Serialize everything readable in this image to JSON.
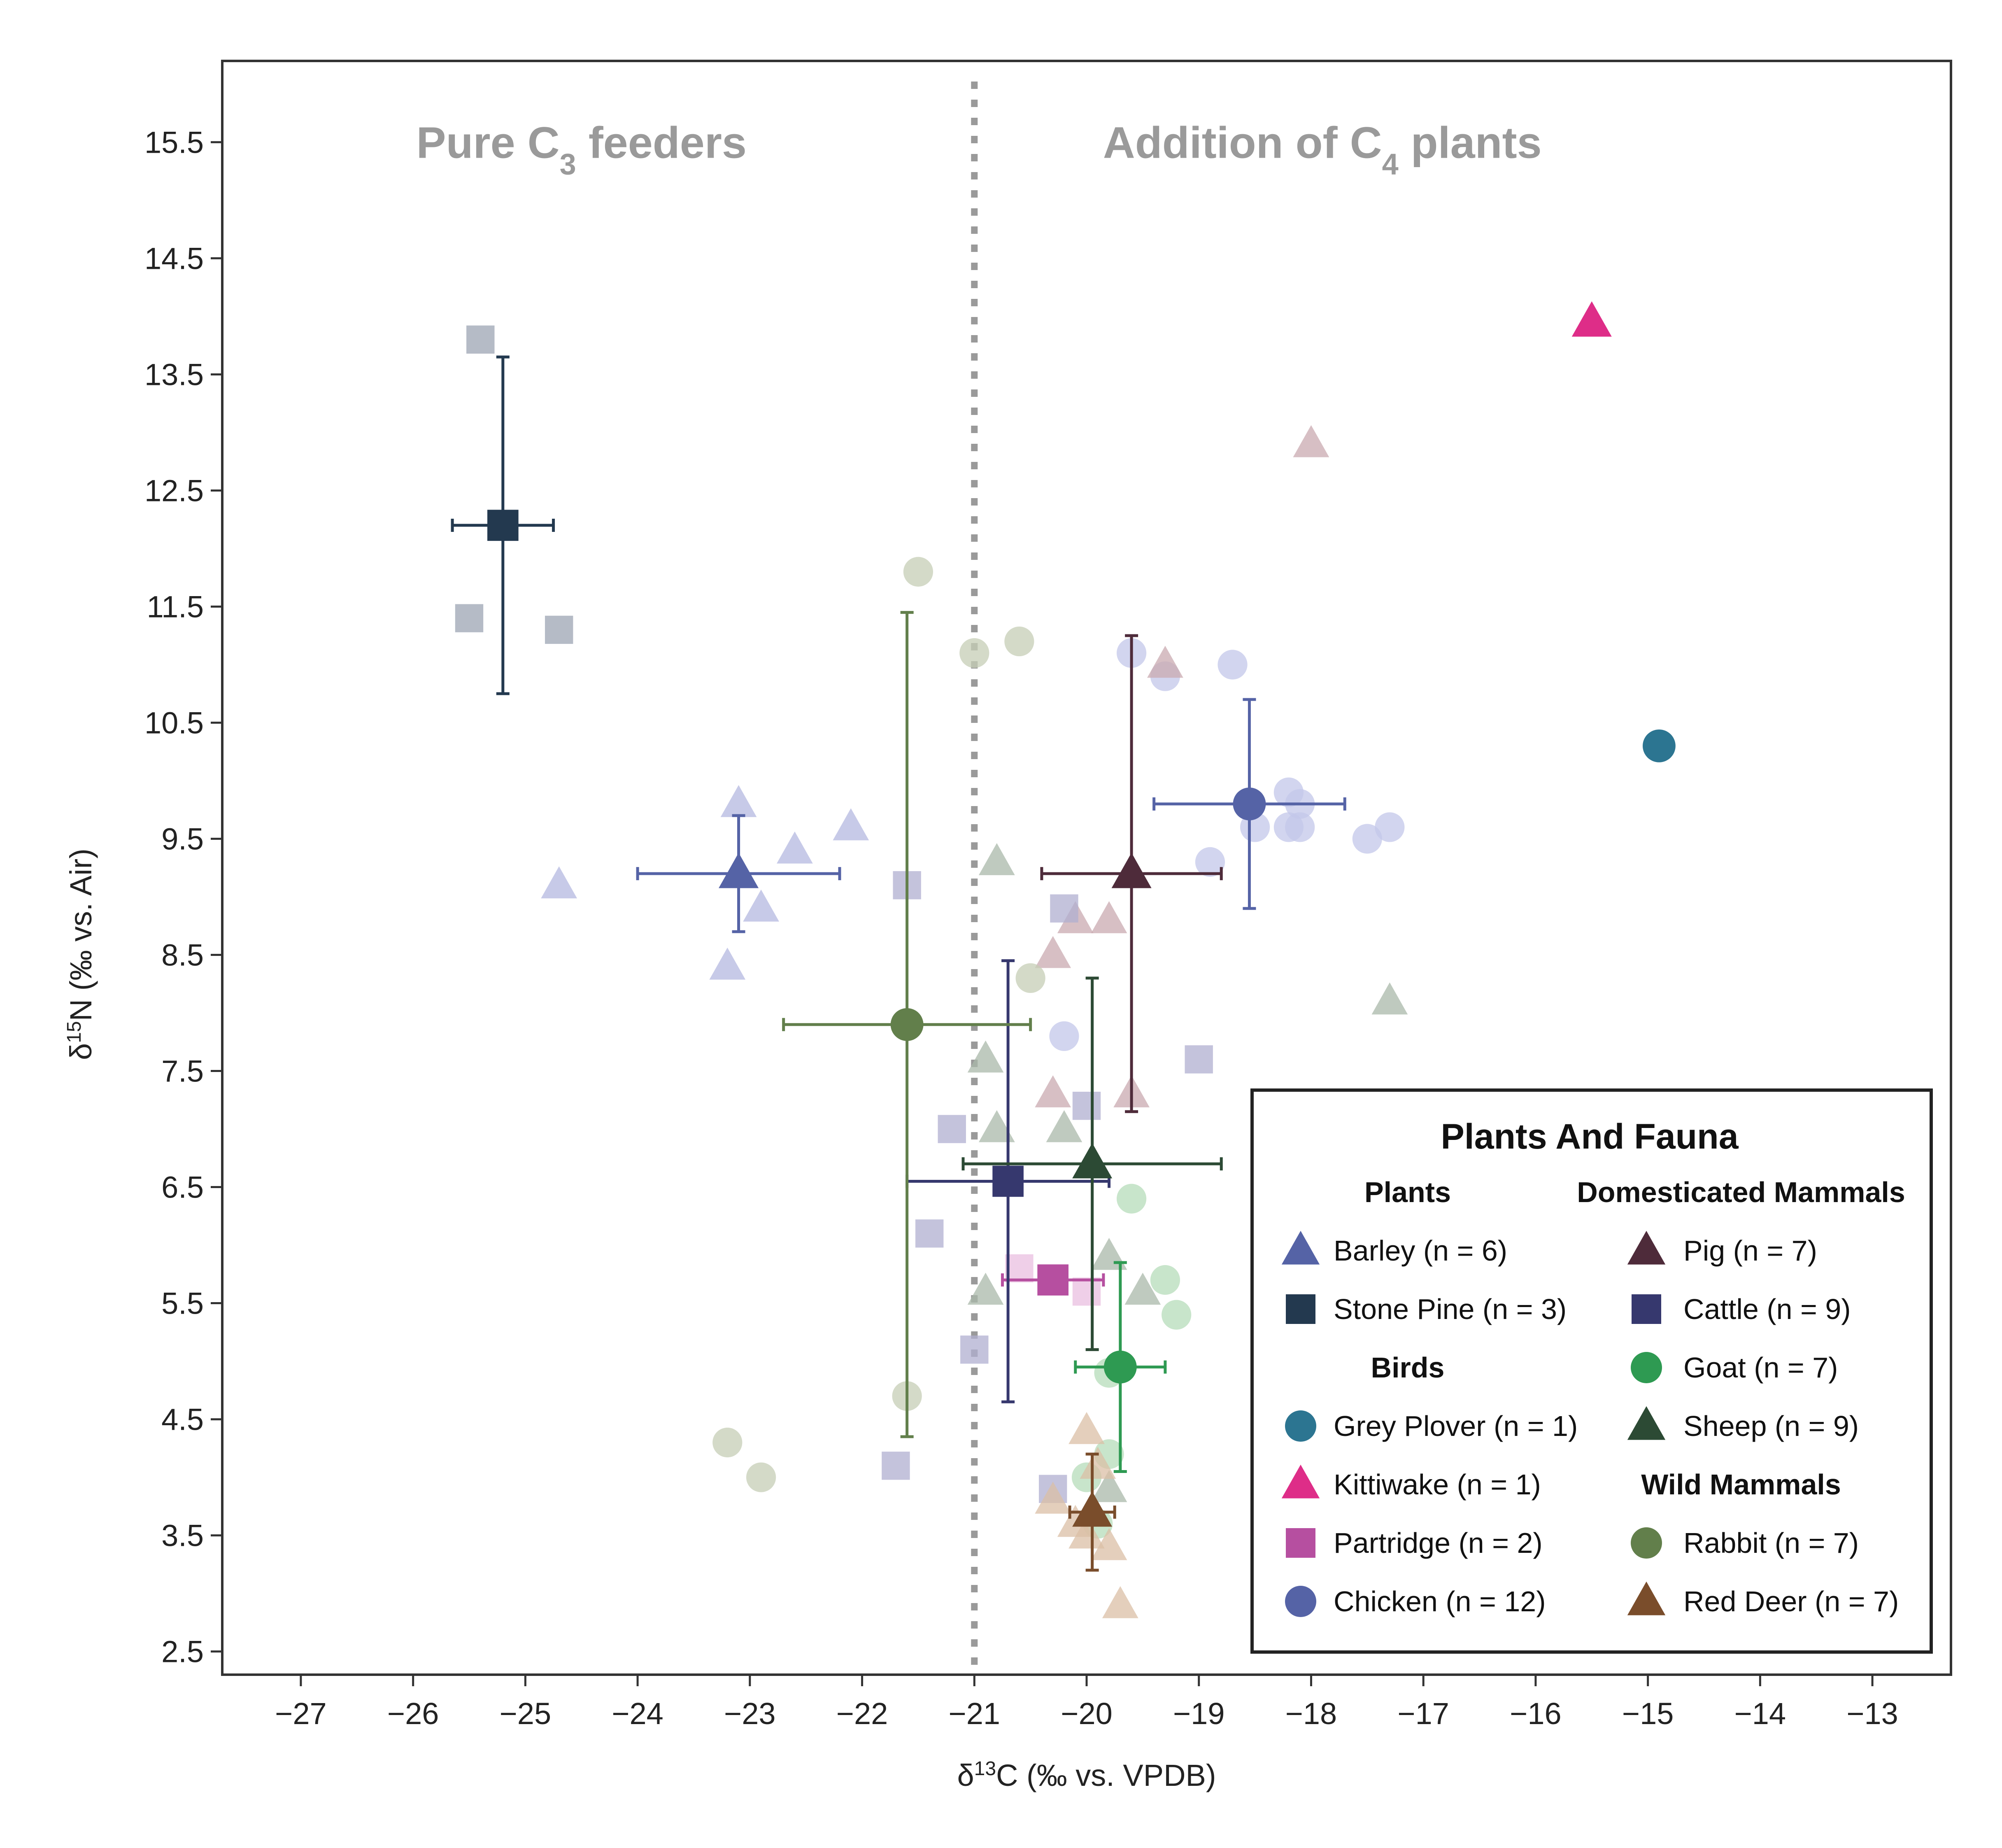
{
  "chart_data": {
    "type": "scatter",
    "xlabel_prefix": "δ",
    "xlabel_sup": "13",
    "xlabel_suffix": "C (‰ vs. VPDB)",
    "ylabel_prefix": "δ",
    "ylabel_sup": "15",
    "ylabel_suffix": "N (‰ vs. Air)",
    "xlim": [
      -27.7,
      -12.3
    ],
    "ylim": [
      2.3,
      16.2
    ],
    "xticks": [
      -27,
      -26,
      -25,
      -24,
      -23,
      -22,
      -21,
      -20,
      -19,
      -18,
      -17,
      -16,
      -15,
      -14,
      -13
    ],
    "xtick_labels": [
      "−27",
      "−26",
      "−25",
      "−24",
      "−23",
      "−22",
      "−21",
      "−20",
      "−19",
      "−18",
      "−17",
      "−16",
      "−15",
      "−14",
      "−13"
    ],
    "yticks": [
      2.5,
      3.5,
      4.5,
      5.5,
      6.5,
      7.5,
      8.5,
      9.5,
      10.5,
      11.5,
      12.5,
      13.5,
      14.5,
      15.5
    ],
    "ytick_labels": [
      "2.5",
      "3.5",
      "4.5",
      "5.5",
      "6.5",
      "7.5",
      "8.5",
      "9.5",
      "10.5",
      "11.5",
      "12.5",
      "13.5",
      "14.5",
      "15.5"
    ],
    "grid": false,
    "divider_x": -21,
    "regions": [
      {
        "text": "Pure C",
        "sub": "3",
        "after": " feeders",
        "x": -24.5,
        "y": 15.5
      },
      {
        "text": "Addition of C",
        "sub": "4",
        "after": " plants",
        "x": -17.9,
        "y": 15.5
      }
    ],
    "legend": {
      "title": "Plants And Fauna",
      "position": "bottom-right",
      "groups": [
        {
          "name": "Plants",
          "column": 0,
          "items": [
            {
              "label": "Barley (n = 6)",
              "series": "barley"
            },
            {
              "label": "Stone Pine (n = 3)",
              "series": "stone_pine"
            }
          ]
        },
        {
          "name": "Birds",
          "column": 0,
          "items": [
            {
              "label": "Grey Plover (n = 1)",
              "series": "grey_plover"
            },
            {
              "label": "Kittiwake (n = 1)",
              "series": "kittiwake"
            },
            {
              "label": "Partridge (n = 2)",
              "series": "partridge"
            },
            {
              "label": "Chicken (n = 12)",
              "series": "chicken"
            }
          ]
        },
        {
          "name": "Domesticated Mammals",
          "column": 1,
          "items": [
            {
              "label": "Pig (n = 7)",
              "series": "pig"
            },
            {
              "label": "Cattle (n = 9)",
              "series": "cattle"
            },
            {
              "label": "Goat (n = 7)",
              "series": "goat"
            },
            {
              "label": "Sheep (n = 9)",
              "series": "sheep"
            }
          ]
        },
        {
          "name": "Wild Mammals",
          "column": 1,
          "items": [
            {
              "label": "Rabbit (n = 7)",
              "series": "rabbit"
            },
            {
              "label": "Red Deer (n = 7)",
              "series": "red_deer"
            }
          ]
        }
      ]
    },
    "series": [
      {
        "id": "barley",
        "name": "Barley (n = 6)",
        "marker": "triangle",
        "color": "#5563a6",
        "light": "#b4b8e0",
        "points": [
          [
            -24.7,
            9.1
          ],
          [
            -23.1,
            9.8
          ],
          [
            -22.9,
            8.9
          ],
          [
            -22.6,
            9.4
          ],
          [
            -22.1,
            9.6
          ],
          [
            -23.2,
            8.4
          ]
        ],
        "mean": [
          -23.1,
          9.2
        ],
        "xerr": 0.9,
        "yerr": 0.5
      },
      {
        "id": "stone_pine",
        "name": "Stone Pine (n = 3)",
        "marker": "square",
        "color": "#23394f",
        "light": "#9ca4b3",
        "points": [
          [
            -25.4,
            13.8
          ],
          [
            -25.5,
            11.4
          ],
          [
            -24.7,
            11.3
          ]
        ],
        "mean": [
          -25.2,
          12.2
        ],
        "xerr": 0.45,
        "yerr": 1.45
      },
      {
        "id": "grey_plover",
        "name": "Grey Plover (n = 1)",
        "marker": "circle",
        "color": "#2c7591",
        "light": "#2c7591",
        "points": [],
        "mean": [
          -14.9,
          10.3
        ],
        "xerr": 0,
        "yerr": 0
      },
      {
        "id": "kittiwake",
        "name": "Kittiwake (n = 1)",
        "marker": "triangle",
        "color": "#de2d88",
        "light": "#de2d88",
        "points": [],
        "mean": [
          -15.5,
          13.95
        ],
        "xerr": 0,
        "yerr": 0
      },
      {
        "id": "partridge",
        "name": "Partridge (n = 2)",
        "marker": "square",
        "color": "#b64fa0",
        "light": "#e9bfe0",
        "points": [
          [
            -20.6,
            5.8
          ],
          [
            -20.0,
            5.6
          ]
        ],
        "mean": [
          -20.3,
          5.7
        ],
        "xerr": 0.45,
        "yerr": 0.1
      },
      {
        "id": "chicken",
        "name": "Chicken (n = 12)",
        "marker": "circle",
        "color": "#5563a6",
        "light": "#c3c7ea",
        "points": [
          [
            -19.6,
            11.1
          ],
          [
            -19.3,
            10.9
          ],
          [
            -18.7,
            11.0
          ],
          [
            -18.2,
            9.9
          ],
          [
            -18.1,
            9.8
          ],
          [
            -18.5,
            9.6
          ],
          [
            -18.2,
            9.6
          ],
          [
            -18.1,
            9.6
          ],
          [
            -17.5,
            9.5
          ],
          [
            -17.3,
            9.6
          ],
          [
            -18.9,
            9.3
          ],
          [
            -20.2,
            7.8
          ]
        ],
        "mean": [
          -18.55,
          9.8
        ],
        "xerr": 0.85,
        "yerr": 0.9
      },
      {
        "id": "pig",
        "name": "Pig (n = 7)",
        "marker": "triangle",
        "color": "#4e2b3a",
        "light": "#c9a9b0",
        "points": [
          [
            -19.3,
            11.0
          ],
          [
            -18.0,
            12.9
          ],
          [
            -20.1,
            8.8
          ],
          [
            -19.8,
            8.8
          ],
          [
            -20.3,
            8.5
          ],
          [
            -20.3,
            7.3
          ],
          [
            -19.6,
            7.3
          ]
        ],
        "mean": [
          -19.6,
          9.2
        ],
        "xerr": 0.8,
        "yerr": 2.05
      },
      {
        "id": "cattle",
        "name": "Cattle (n = 9)",
        "marker": "square",
        "color": "#36386e",
        "light": "#b0afd0",
        "points": [
          [
            -21.6,
            9.1
          ],
          [
            -20.2,
            8.9
          ],
          [
            -20.0,
            7.2
          ],
          [
            -19.0,
            7.6
          ],
          [
            -21.2,
            7.0
          ],
          [
            -21.4,
            6.1
          ],
          [
            -21.0,
            5.1
          ],
          [
            -21.7,
            4.1
          ],
          [
            -20.3,
            3.9
          ]
        ],
        "mean": [
          -20.7,
          6.55
        ],
        "xerr": 0.9,
        "yerr": 1.9
      },
      {
        "id": "goat",
        "name": "Goat (n = 7)",
        "marker": "circle",
        "color": "#2e9a52",
        "light": "#b5dcb9",
        "points": [
          [
            -19.6,
            6.4
          ],
          [
            -19.3,
            5.7
          ],
          [
            -19.2,
            5.4
          ],
          [
            -19.8,
            4.9
          ],
          [
            -19.8,
            4.2
          ],
          [
            -20.0,
            4.0
          ],
          [
            -19.9,
            3.6
          ]
        ],
        "mean": [
          -19.7,
          4.95
        ],
        "xerr": 0.4,
        "yerr": 0.9
      },
      {
        "id": "sheep",
        "name": "Sheep (n = 9)",
        "marker": "triangle",
        "color": "#2c4a34",
        "light": "#a9b8aa",
        "points": [
          [
            -20.8,
            9.3
          ],
          [
            -17.3,
            8.1
          ],
          [
            -20.9,
            7.6
          ],
          [
            -20.8,
            7.0
          ],
          [
            -20.2,
            7.0
          ],
          [
            -20.9,
            5.6
          ],
          [
            -19.8,
            5.9
          ],
          [
            -19.5,
            5.6
          ],
          [
            -19.8,
            3.9
          ]
        ],
        "mean": [
          -19.95,
          6.7
        ],
        "xerr": 1.15,
        "yerr": 1.6
      },
      {
        "id": "rabbit",
        "name": "Rabbit (n = 7)",
        "marker": "circle",
        "color": "#627f4b",
        "light": "#c6cdb6",
        "points": [
          [
            -21.5,
            11.8
          ],
          [
            -20.6,
            11.2
          ],
          [
            -21.0,
            11.1
          ],
          [
            -20.5,
            8.3
          ],
          [
            -21.6,
            4.7
          ],
          [
            -23.2,
            4.3
          ],
          [
            -22.9,
            4.0
          ]
        ],
        "mean": [
          -21.6,
          7.9
        ],
        "xerr": 1.1,
        "yerr": 3.55
      },
      {
        "id": "red_deer",
        "name": "Red Deer (n = 7)",
        "marker": "triangle",
        "color": "#7a4d2b",
        "light": "#dbbfa6",
        "points": [
          [
            -20.0,
            4.4
          ],
          [
            -19.9,
            4.1
          ],
          [
            -20.3,
            3.8
          ],
          [
            -20.0,
            3.5
          ],
          [
            -19.8,
            3.4
          ],
          [
            -20.1,
            3.6
          ],
          [
            -19.7,
            2.9
          ]
        ],
        "mean": [
          -19.95,
          3.7
        ],
        "xerr": 0.2,
        "yerr": 0.5
      }
    ]
  }
}
